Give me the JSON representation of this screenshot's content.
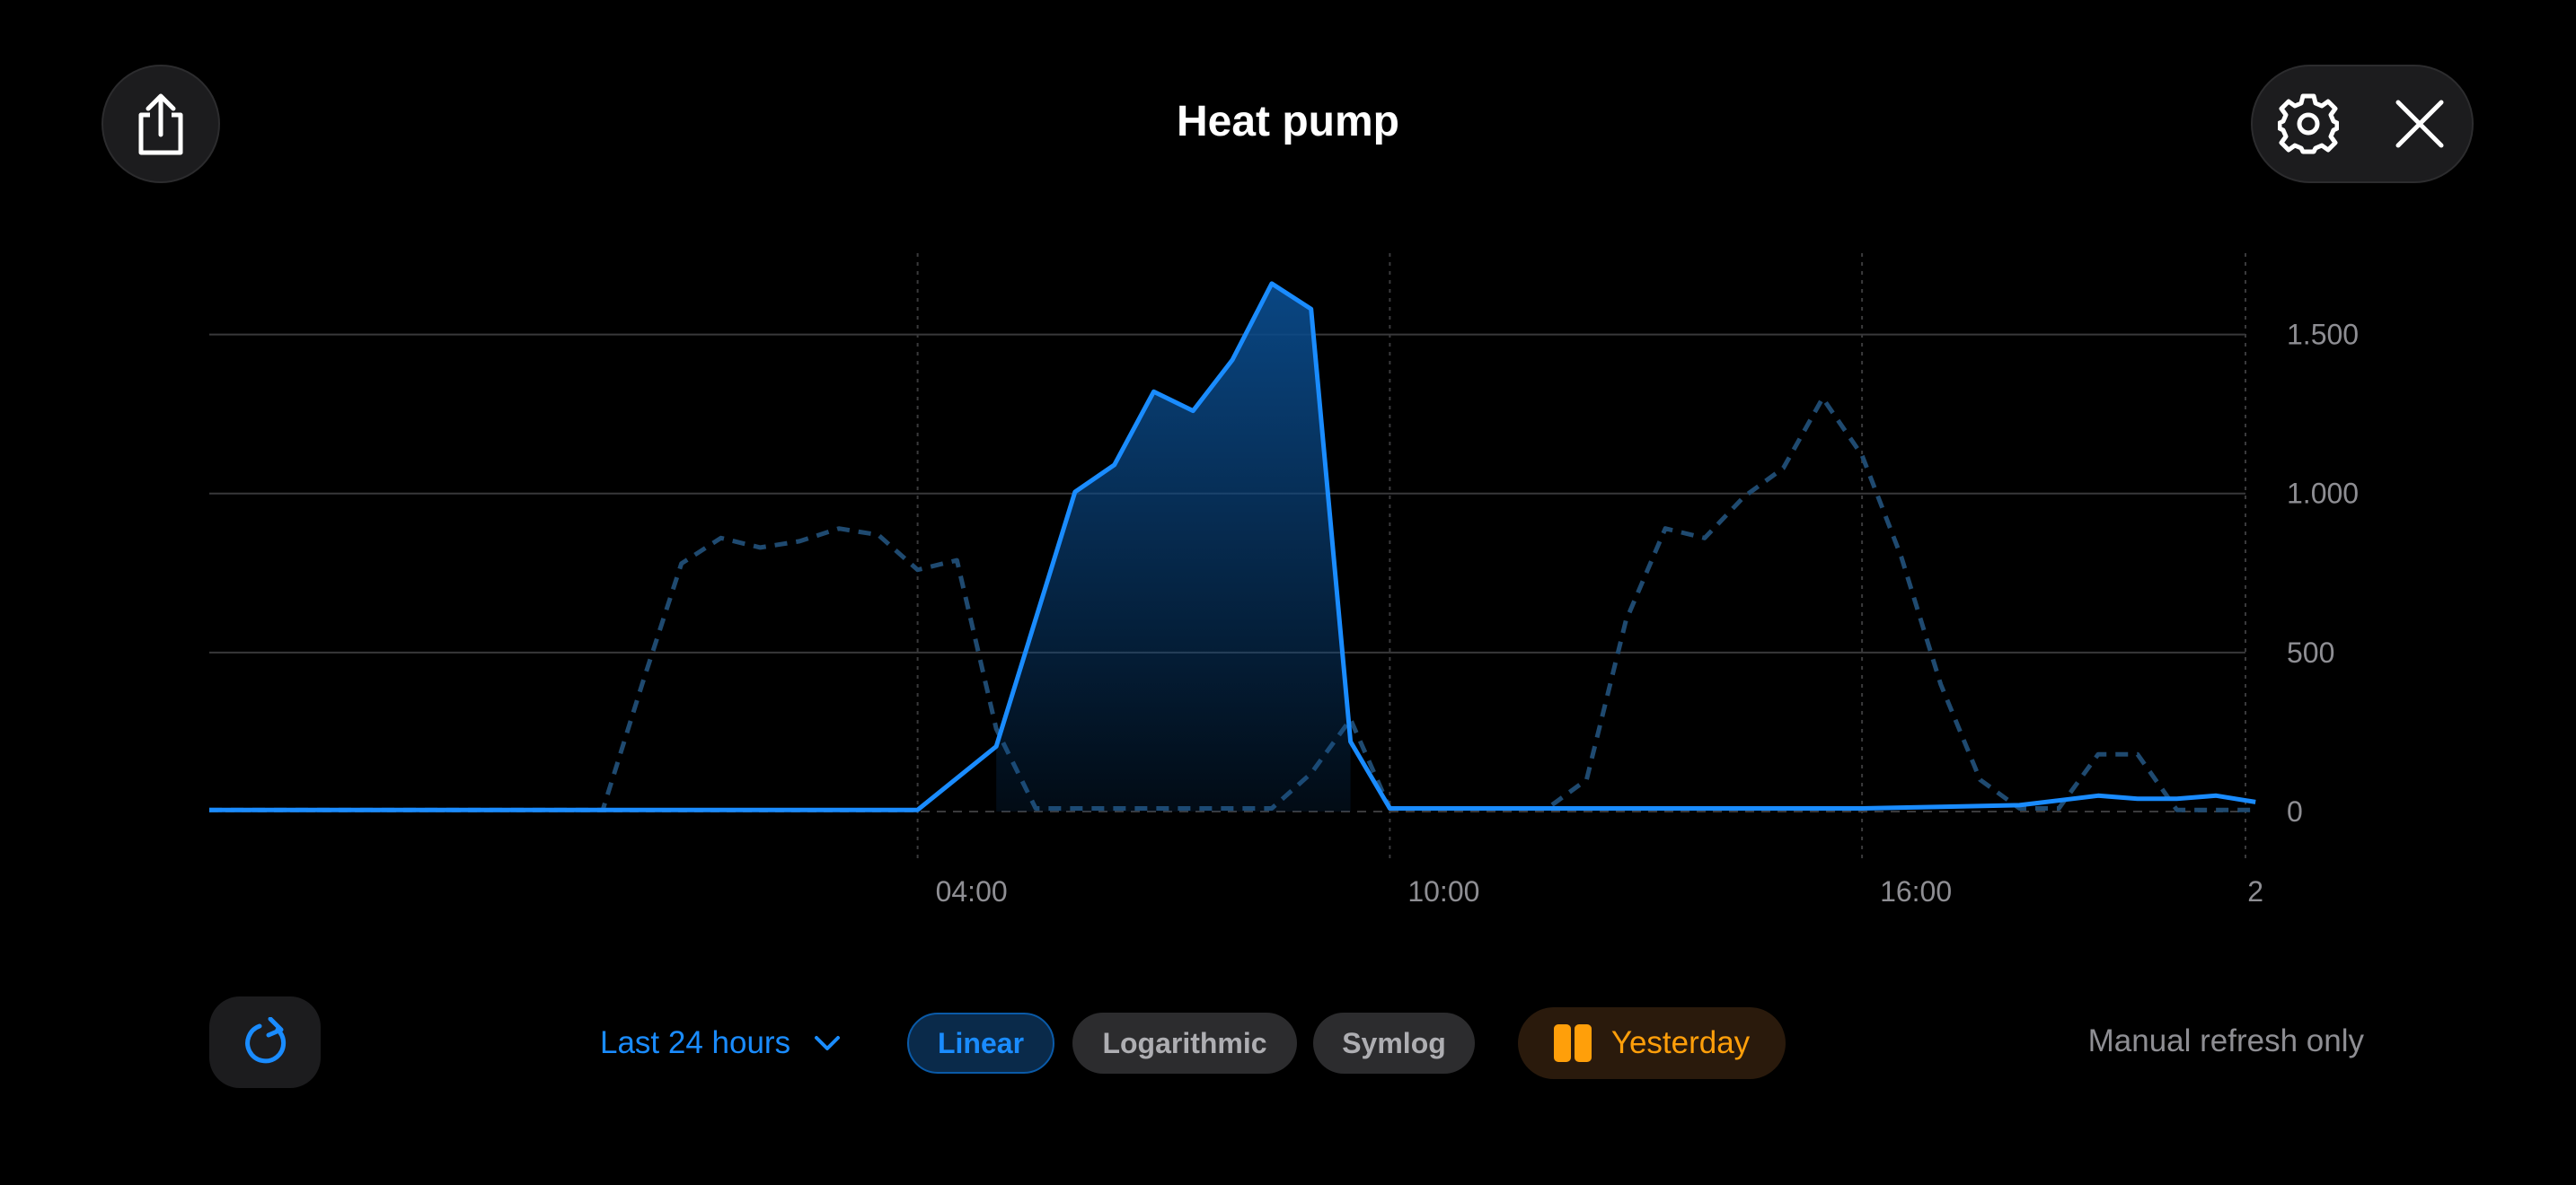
{
  "header": {
    "title": "Heat pump"
  },
  "icons": {
    "share": "share-icon",
    "settings": "gear-icon",
    "close": "close-icon",
    "refresh": "refresh-icon",
    "dropdown": "chevron-down-icon",
    "compare": "columns-icon"
  },
  "controls": {
    "range_label": "Last 24 hours",
    "scales": [
      "Linear",
      "Logarithmic",
      "Symlog"
    ],
    "active_scale": "Linear",
    "compare_label": "Yesterday",
    "status": "Manual refresh only"
  },
  "colors": {
    "accent": "#1a8cff",
    "compare": "#ff9f0a",
    "dashed_series": "#1f4a70"
  },
  "chart_data": {
    "type": "area",
    "x_unit": "hours",
    "xlim": [
      -5,
      21.1
    ],
    "ylim": [
      0,
      1750
    ],
    "x_ticks": [
      {
        "value": 4,
        "label": "04:00"
      },
      {
        "value": 10,
        "label": "10:00"
      },
      {
        "value": 16,
        "label": "16:00"
      },
      {
        "value": 22,
        "label": "2"
      }
    ],
    "y_ticks": [
      {
        "value": 0,
        "label": "0"
      },
      {
        "value": 500,
        "label": "500"
      },
      {
        "value": 1000,
        "label": "1.000"
      },
      {
        "value": 1500,
        "label": "1.500"
      }
    ],
    "series": [
      {
        "style": "solid-area",
        "x": [
          -5,
          -4,
          -3,
          -2,
          -1,
          0,
          1,
          2,
          3,
          4,
          5,
          6,
          6.5,
          7,
          7.5,
          8,
          8.5,
          9,
          9.5,
          10,
          10.5,
          11,
          12,
          13,
          14,
          15,
          16,
          17,
          18,
          19,
          19.5,
          20,
          20.5,
          21
        ],
        "values": [
          5,
          5,
          5,
          5,
          5,
          5,
          5,
          5,
          5,
          5,
          205,
          1005,
          1090,
          1320,
          1260,
          1420,
          1660,
          1580,
          220,
          10,
          10,
          10,
          10,
          10,
          10,
          10,
          10,
          15,
          20,
          50,
          40,
          40,
          50,
          30
        ]
      },
      {
        "style": "dashed",
        "x": [
          -5,
          -4,
          -3,
          -2,
          -1,
          0,
          0.5,
          1,
          1.5,
          2,
          2.5,
          3,
          3.5,
          4,
          4.5,
          5,
          5.5,
          6,
          6.5,
          7,
          7.5,
          8,
          8.5,
          9,
          9.5,
          10,
          10.5,
          11,
          11.5,
          12,
          12.5,
          13,
          13.5,
          14,
          14.5,
          15,
          15.5,
          16,
          16.5,
          17,
          17.5,
          18,
          18.5,
          19,
          19.5,
          20,
          20.5,
          21
        ],
        "values": [
          5,
          5,
          5,
          5,
          5,
          5,
          400,
          780,
          860,
          830,
          850,
          890,
          870,
          760,
          790,
          260,
          10,
          10,
          10,
          10,
          10,
          10,
          10,
          120,
          290,
          10,
          10,
          10,
          10,
          10,
          100,
          600,
          890,
          860,
          990,
          1080,
          1300,
          1120,
          800,
          400,
          100,
          10,
          10,
          180,
          180,
          5,
          5,
          5
        ]
      }
    ]
  }
}
